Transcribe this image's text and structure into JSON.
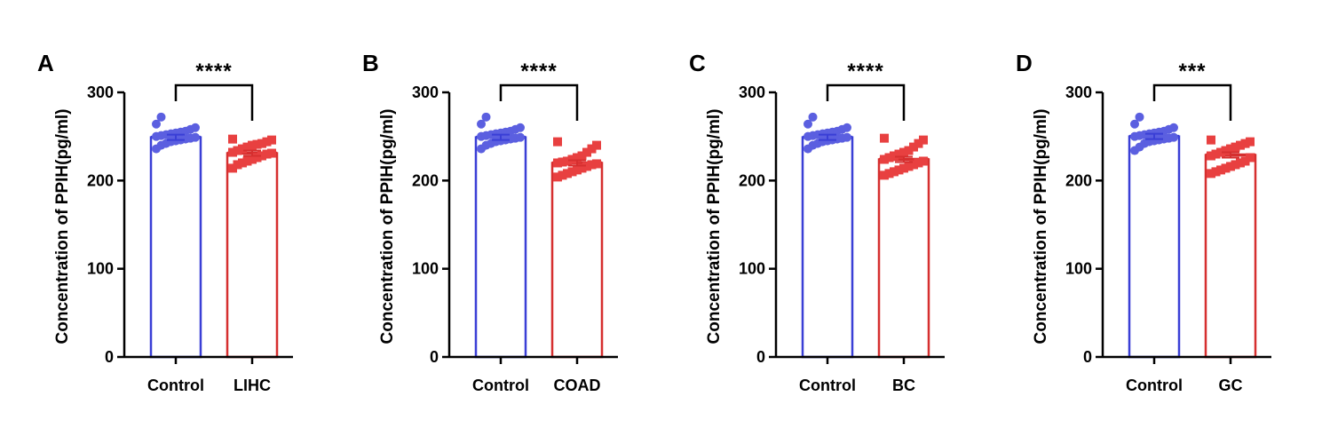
{
  "colors": {
    "control": "#3a3fd6",
    "control_point": "#5b5fe0",
    "disease": "#d62f2f",
    "disease_point": "#e84040",
    "axis": "#000000"
  },
  "chart_data": [
    {
      "type": "bar",
      "panel_label": "A",
      "ylabel": "Concentration of PPIH(pg/ml)",
      "ylim": [
        0,
        300
      ],
      "yticks": [
        0,
        100,
        200,
        300
      ],
      "categories": [
        "Control",
        "LIHC"
      ],
      "values": [
        249,
        231
      ],
      "significance": "****",
      "points": [
        [
          236,
          240,
          242,
          244,
          245,
          246,
          247,
          248,
          249,
          250,
          251,
          252,
          253,
          254,
          255,
          256,
          258,
          260,
          264,
          272
        ],
        [
          214,
          218,
          220,
          222,
          224,
          226,
          228,
          230,
          231,
          232,
          234,
          236,
          238,
          240,
          241,
          242,
          244,
          246,
          247
        ]
      ]
    },
    {
      "type": "bar",
      "panel_label": "B",
      "ylabel": "Concentration of PPIH(pg/ml)",
      "ylim": [
        0,
        300
      ],
      "yticks": [
        0,
        100,
        200,
        300
      ],
      "categories": [
        "Control",
        "COAD"
      ],
      "values": [
        249,
        220
      ],
      "significance": "****",
      "points": [
        [
          236,
          240,
          242,
          244,
          245,
          246,
          247,
          248,
          249,
          250,
          251,
          252,
          253,
          254,
          255,
          256,
          258,
          260,
          264,
          272
        ],
        [
          204,
          206,
          208,
          210,
          212,
          214,
          216,
          218,
          219,
          220,
          221,
          222,
          224,
          226,
          228,
          232,
          236,
          240,
          244
        ]
      ]
    },
    {
      "type": "bar",
      "panel_label": "C",
      "ylabel": "Concentration of PPIH(pg/ml)",
      "ylim": [
        0,
        300
      ],
      "yticks": [
        0,
        100,
        200,
        300
      ],
      "categories": [
        "Control",
        "BC"
      ],
      "values": [
        249,
        224
      ],
      "significance": "****",
      "points": [
        [
          236,
          240,
          242,
          244,
          245,
          246,
          247,
          248,
          249,
          250,
          251,
          252,
          253,
          254,
          255,
          256,
          258,
          260,
          264,
          272
        ],
        [
          206,
          208,
          210,
          212,
          214,
          216,
          218,
          220,
          222,
          224,
          226,
          228,
          230,
          232,
          234,
          238,
          242,
          246,
          248
        ]
      ]
    },
    {
      "type": "bar",
      "panel_label": "D",
      "ylabel": "Concentration of PPIH(pg/ml)",
      "ylim": [
        0,
        300
      ],
      "yticks": [
        0,
        100,
        200,
        300
      ],
      "categories": [
        "Control",
        "GC"
      ],
      "values": [
        250,
        229
      ],
      "significance": "***",
      "points": [
        [
          234,
          238,
          242,
          244,
          245,
          246,
          247,
          248,
          249,
          250,
          251,
          252,
          253,
          254,
          255,
          256,
          258,
          260,
          264,
          272
        ],
        [
          208,
          210,
          212,
          214,
          216,
          218,
          220,
          222,
          226,
          228,
          230,
          232,
          234,
          236,
          238,
          240,
          242,
          244,
          246
        ]
      ]
    }
  ]
}
